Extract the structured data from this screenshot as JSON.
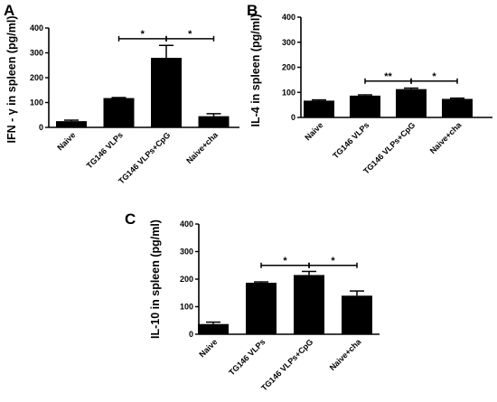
{
  "chart_data": [
    {
      "type": "bar",
      "panel": "A",
      "ylabel": "IFN - γ  in spleen (pg/ml)",
      "ylim": [
        0,
        400
      ],
      "yticks": [
        0,
        100,
        200,
        300,
        400
      ],
      "categories": [
        "Naive",
        "TG146 VLPs",
        "TG146 VLPs+CpG",
        "Naive+cha"
      ],
      "values": [
        25,
        118,
        280,
        45
      ],
      "errors": [
        4,
        2,
        50,
        10
      ],
      "significance": [
        {
          "from": 1,
          "to": 2,
          "label": "*",
          "y": 357
        },
        {
          "from": 2,
          "to": 3,
          "label": "*",
          "y": 357
        }
      ]
    },
    {
      "type": "bar",
      "panel": "B",
      "ylabel": "IL-4 in spleen (pg/ml)",
      "ylim": [
        0,
        400
      ],
      "yticks": [
        0,
        100,
        200,
        300,
        400
      ],
      "categories": [
        "Naive",
        "TG146 VLPs",
        "TG146 VLPs+CpG",
        "Naive+cha"
      ],
      "values": [
        67,
        87,
        113,
        74
      ],
      "errors": [
        3,
        3,
        4,
        3
      ],
      "significance": [
        {
          "from": 1,
          "to": 2,
          "label": "**",
          "y": 145
        },
        {
          "from": 2,
          "to": 3,
          "label": "*",
          "y": 145
        }
      ]
    },
    {
      "type": "bar",
      "panel": "C",
      "ylabel": "IL-10 in spleen (pg/ml)",
      "ylim": [
        0,
        400
      ],
      "yticks": [
        0,
        100,
        200,
        300,
        400
      ],
      "categories": [
        "Naive",
        "TG146 VLPs",
        "TG146 VLPs+CpG",
        "Naive+cha"
      ],
      "values": [
        37,
        187,
        215,
        140
      ],
      "errors": [
        7,
        3,
        13,
        17
      ],
      "significance": [
        {
          "from": 1,
          "to": 2,
          "label": "*",
          "y": 250
        },
        {
          "from": 2,
          "to": 3,
          "label": "*",
          "y": 250
        }
      ]
    }
  ]
}
